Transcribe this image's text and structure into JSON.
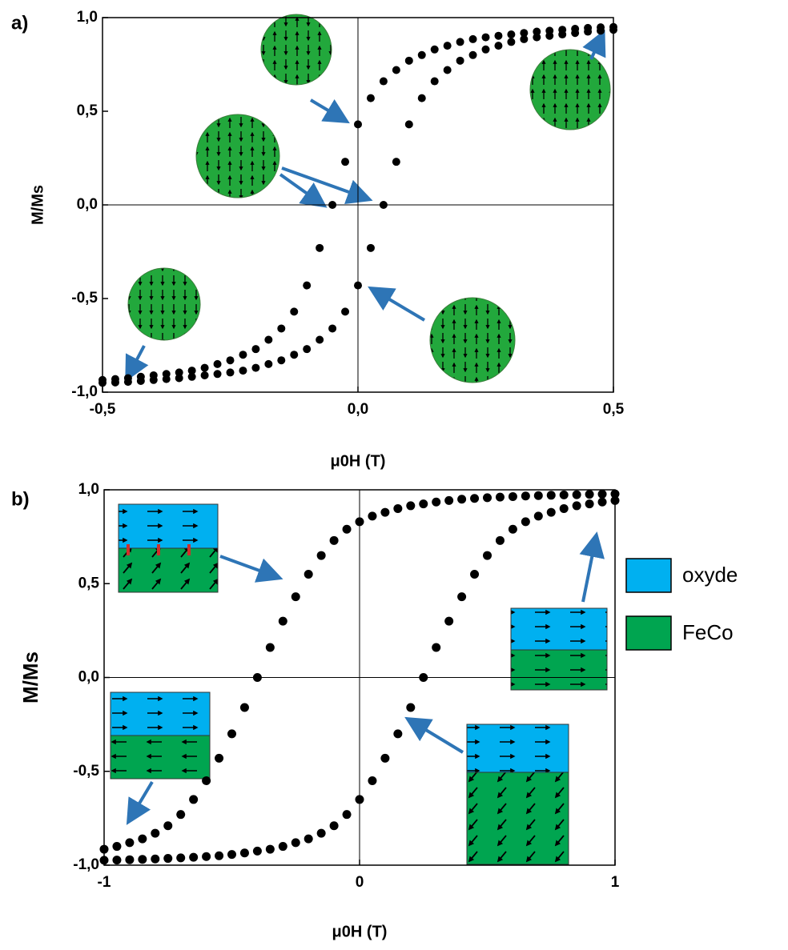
{
  "chart_data": [
    {
      "type": "scatter",
      "panel_label": "a)",
      "x_label": "μ0H (T)",
      "y_label": "M/Ms",
      "xlim": [
        -0.5,
        0.5
      ],
      "ylim": [
        -1,
        1
      ],
      "xticks": [
        {
          "value": -0.5,
          "label": "-0,5"
        },
        {
          "value": 0,
          "label": "0,0"
        },
        {
          "value": 0.5,
          "label": "0,5"
        }
      ],
      "yticks": [
        {
          "value": -1,
          "label": "-1,0"
        },
        {
          "value": -0.5,
          "label": "-0,5"
        },
        {
          "value": 0,
          "label": "0,0"
        },
        {
          "value": 0.5,
          "label": "0,5"
        },
        {
          "value": 1,
          "label": "1,0"
        }
      ],
      "x": [
        -0.5,
        -0.475,
        -0.45,
        -0.425,
        -0.4,
        -0.375,
        -0.35,
        -0.325,
        -0.3,
        -0.275,
        -0.25,
        -0.225,
        -0.2,
        -0.175,
        -0.15,
        -0.125,
        -0.1,
        -0.075,
        -0.05,
        -0.025,
        0,
        0.025,
        0.05,
        0.075,
        0.1,
        0.125,
        0.15,
        0.175,
        0.2,
        0.225,
        0.25,
        0.275,
        0.3,
        0.325,
        0.35,
        0.375,
        0.4,
        0.425,
        0.45,
        0.475,
        0.5
      ],
      "series": [
        {
          "color": "#000000",
          "values": [
            -0.935,
            -0.93,
            -0.925,
            -0.918,
            -0.91,
            -0.903,
            -0.895,
            -0.885,
            -0.87,
            -0.85,
            -0.83,
            -0.8,
            -0.77,
            -0.72,
            -0.66,
            -0.57,
            -0.43,
            -0.23,
            0,
            0.23,
            0.43,
            0.57,
            0.66,
            0.72,
            0.77,
            0.8,
            0.83,
            0.85,
            0.87,
            0.885,
            0.895,
            0.903,
            0.91,
            0.918,
            0.925,
            0.93,
            0.935,
            0.94,
            0.945,
            0.948,
            0.95
          ]
        },
        {
          "color": "#000000",
          "values": [
            -0.95,
            -0.948,
            -0.945,
            -0.94,
            -0.935,
            -0.93,
            -0.925,
            -0.918,
            -0.91,
            -0.903,
            -0.895,
            -0.885,
            -0.87,
            -0.85,
            -0.83,
            -0.8,
            -0.77,
            -0.72,
            -0.66,
            -0.57,
            -0.43,
            -0.23,
            0,
            0.23,
            0.43,
            0.57,
            0.66,
            0.72,
            0.77,
            0.8,
            0.83,
            0.85,
            0.87,
            0.885,
            0.895,
            0.903,
            0.91,
            0.918,
            0.925,
            0.93,
            0.935
          ]
        }
      ]
    },
    {
      "type": "scatter",
      "panel_label": "b)",
      "x_label": "μ0H (T)",
      "y_label": "M/Ms",
      "xlim": [
        -1,
        1
      ],
      "ylim": [
        -1,
        1
      ],
      "xticks": [
        -1,
        0,
        1
      ],
      "yticks": [
        {
          "value": -1,
          "label": "-1,0"
        },
        {
          "value": -0.5,
          "label": "-0,5"
        },
        {
          "value": 0,
          "label": "0,0"
        },
        {
          "value": 0.5,
          "label": "0,5"
        },
        {
          "value": 1,
          "label": "1,0"
        }
      ],
      "x": [
        -1,
        -0.95,
        -0.9,
        -0.85,
        -0.8,
        -0.75,
        -0.7,
        -0.65,
        -0.6,
        -0.55,
        -0.5,
        -0.45,
        -0.4,
        -0.35,
        -0.3,
        -0.25,
        -0.2,
        -0.15,
        -0.1,
        -0.05,
        0,
        0.05,
        0.1,
        0.15,
        0.2,
        0.25,
        0.3,
        0.35,
        0.4,
        0.45,
        0.5,
        0.55,
        0.6,
        0.65,
        0.7,
        0.75,
        0.8,
        0.85,
        0.9,
        0.95,
        1
      ],
      "series": [
        {
          "color": "#000000",
          "values": [
            -0.915,
            -0.9,
            -0.88,
            -0.86,
            -0.83,
            -0.79,
            -0.73,
            -0.65,
            -0.55,
            -0.43,
            -0.3,
            -0.16,
            0,
            0.16,
            0.3,
            0.43,
            0.55,
            0.65,
            0.73,
            0.79,
            0.83,
            0.86,
            0.88,
            0.9,
            0.915,
            0.925,
            0.935,
            0.943,
            0.95,
            0.954,
            0.958,
            0.961,
            0.964,
            0.967,
            0.969,
            0.971,
            0.973,
            0.974,
            0.976,
            0.977,
            0.978
          ]
        },
        {
          "color": "#000000",
          "values": [
            -0.974,
            -0.973,
            -0.971,
            -0.969,
            -0.967,
            -0.964,
            -0.961,
            -0.958,
            -0.954,
            -0.95,
            -0.943,
            -0.935,
            -0.925,
            -0.915,
            -0.9,
            -0.88,
            -0.86,
            -0.83,
            -0.79,
            -0.73,
            -0.65,
            -0.55,
            -0.43,
            -0.3,
            -0.16,
            0,
            0.16,
            0.3,
            0.43,
            0.55,
            0.65,
            0.73,
            0.79,
            0.83,
            0.86,
            0.88,
            0.9,
            0.915,
            0.925,
            0.935,
            0.943
          ]
        }
      ],
      "legend": [
        {
          "label": "oxyde",
          "color": "#00b0f0"
        },
        {
          "label": "FeCo",
          "color": "#00a550"
        }
      ]
    }
  ]
}
